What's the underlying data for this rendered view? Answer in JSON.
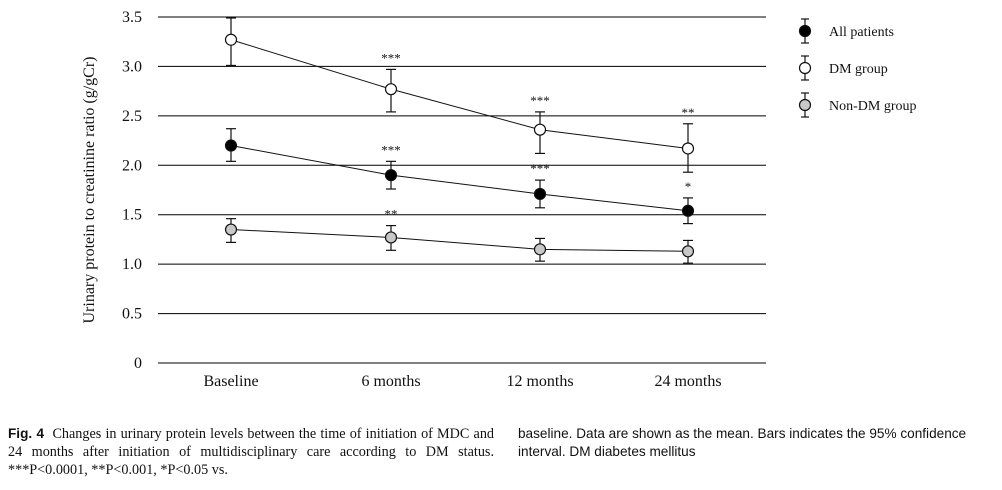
{
  "chart_data": {
    "type": "line",
    "title": "",
    "xlabel": "",
    "ylabel": "Urinary protein to creatinine ratio (g/gCr)",
    "categories": [
      "Baseline",
      "6 months",
      "12 months",
      "24 months"
    ],
    "ylim": [
      0,
      3.5
    ],
    "yticks": [
      "0",
      "0.5",
      "1.0",
      "1.5",
      "2.0",
      "2.5",
      "3.0",
      "3.5"
    ],
    "ytick_values": [
      0,
      0.5,
      1.0,
      1.5,
      2.0,
      2.5,
      3.0,
      3.5
    ],
    "grid": true,
    "legend_position": "top-right",
    "series": [
      {
        "name": "All patients",
        "marker": "filled-black",
        "values": [
          2.2,
          1.9,
          1.71,
          1.54
        ],
        "ci_low": [
          2.04,
          1.76,
          1.57,
          1.41
        ],
        "ci_high": [
          2.37,
          2.04,
          1.85,
          1.67
        ],
        "significance": [
          "",
          "***",
          "***",
          "*"
        ]
      },
      {
        "name": "DM group",
        "marker": "open-white",
        "values": [
          3.27,
          2.77,
          2.36,
          2.17
        ],
        "ci_low": [
          3.01,
          2.54,
          2.12,
          1.93
        ],
        "ci_high": [
          3.49,
          2.97,
          2.54,
          2.42
        ],
        "significance": [
          "",
          "***",
          "***",
          "**"
        ]
      },
      {
        "name": "Non-DM group",
        "marker": "filled-gray",
        "values": [
          1.35,
          1.27,
          1.15,
          1.13
        ],
        "ci_low": [
          1.22,
          1.14,
          1.03,
          1.01
        ],
        "ci_high": [
          1.46,
          1.39,
          1.26,
          1.24
        ],
        "significance": [
          "",
          "**",
          "",
          ""
        ]
      }
    ]
  },
  "caption": {
    "label": "Fig. 4",
    "text_left": "Changes in urinary protein levels between the time of initiation of MDC and 24 months after initiation of multidisciplinary care according to DM status. ***P<0.0001, **P<0.001, *P<0.05 vs.",
    "text_right": "baseline. Data are shown as the mean. Bars indicates the 95% confidence interval. DM diabetes mellitus"
  },
  "colors": {
    "line": "#111111",
    "filled_black": "#000000",
    "open_white": "#ffffff",
    "filled_gray": "#c8c8c8"
  }
}
